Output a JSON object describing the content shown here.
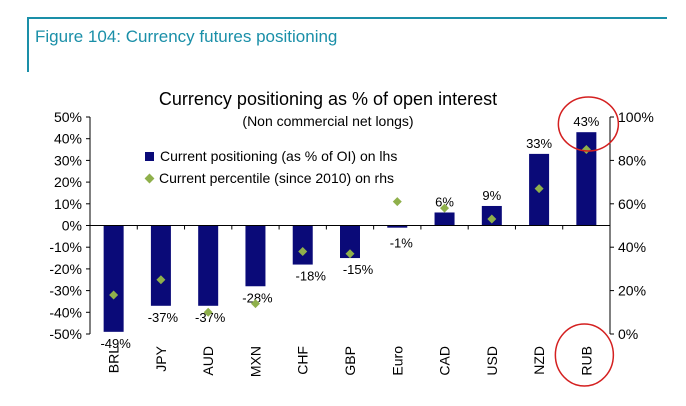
{
  "figure_title": "Figure 104: Currency futures positioning",
  "colors": {
    "frame": "#1a8fa8",
    "bar": "#0a0a78",
    "marker": "#8fb04b",
    "circle": "#d42020"
  },
  "chart_data": {
    "type": "bar",
    "title": "Currency positioning as % of open interest",
    "subtitle": "(Non commercial net longs)",
    "categories": [
      "BRL",
      "JPY",
      "AUD",
      "MXN",
      "CHF",
      "GBP",
      "Euro",
      "CAD",
      "USD",
      "NZD",
      "RUB"
    ],
    "series": [
      {
        "name": "Current positioning (as % of OI) on lhs",
        "axis": "left",
        "values": [
          -49,
          -37,
          -37,
          -28,
          -18,
          -15,
          -1,
          6,
          9,
          33,
          43
        ],
        "data_labels": [
          "-49%",
          "-37%",
          "-37%",
          "-28%",
          "-18%",
          "-15%",
          "-1%",
          "6%",
          "9%",
          "33%",
          "43%"
        ]
      },
      {
        "name": "Current percentile (since 2010) on rhs",
        "axis": "right",
        "type": "scatter",
        "values": [
          18,
          25,
          10,
          14,
          38,
          37,
          61,
          58,
          53,
          67,
          85
        ]
      }
    ],
    "y_left": {
      "ylim": [
        -50,
        50
      ],
      "ticks": [
        50,
        40,
        30,
        20,
        10,
        0,
        -10,
        -20,
        -30,
        -40,
        -50
      ],
      "tick_labels": [
        "50%",
        "40%",
        "30%",
        "20%",
        "10%",
        "0%",
        "-10%",
        "-20%",
        "-30%",
        "-40%",
        "-50%"
      ]
    },
    "y_right": {
      "ylim": [
        0,
        100
      ],
      "ticks": [
        100,
        80,
        60,
        40,
        20,
        0
      ],
      "tick_labels": [
        "100%",
        "80%",
        "60%",
        "40%",
        "20%",
        "0%"
      ]
    },
    "legend_position": "upper-left",
    "annotations": [
      "circle around RUB bar value",
      "circle around RUB category label"
    ]
  }
}
